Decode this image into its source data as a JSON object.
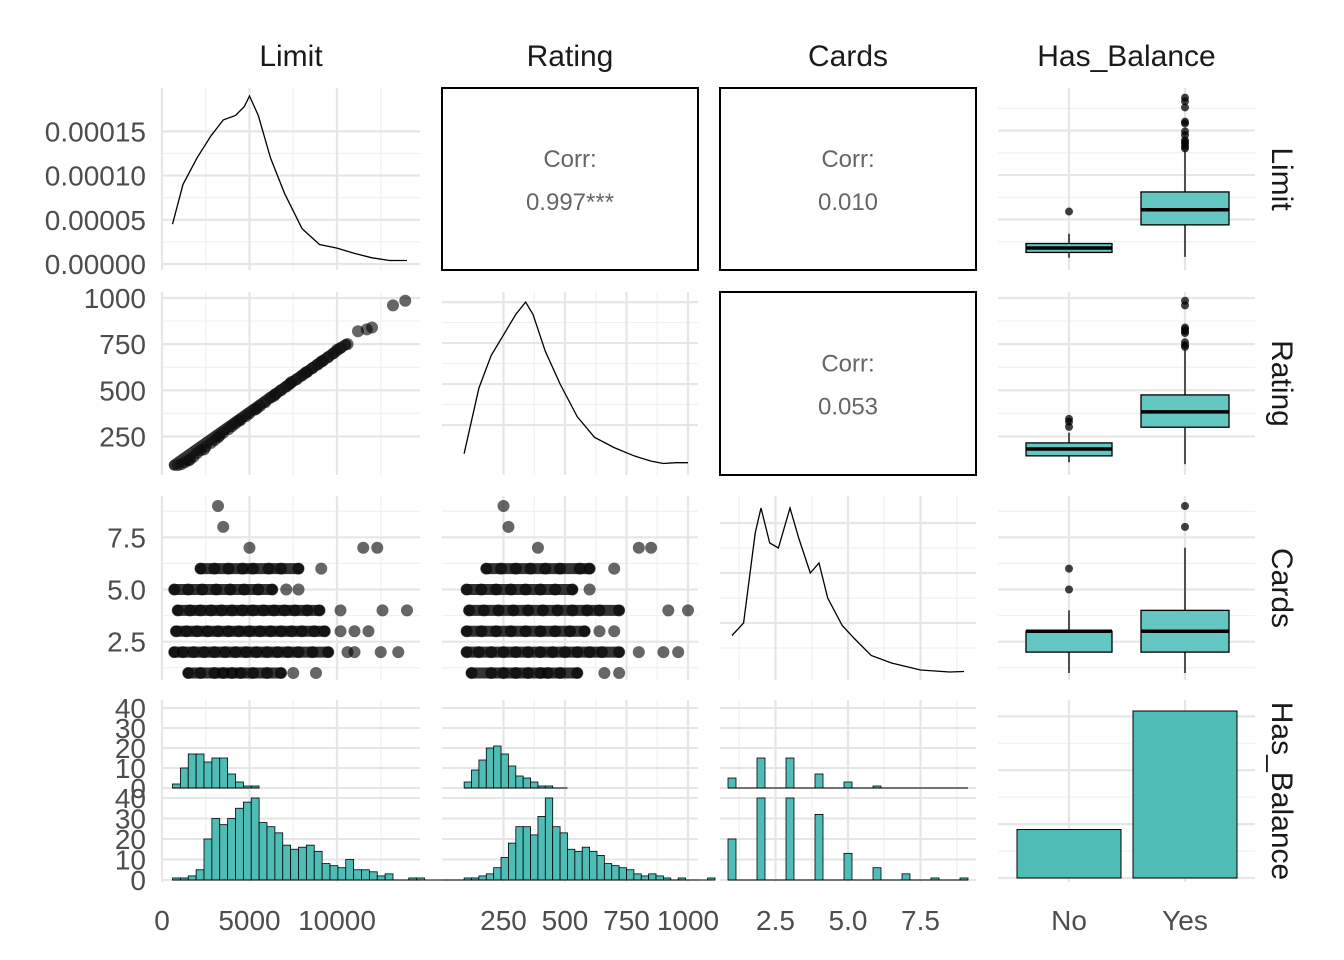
{
  "chart_data": {
    "type": "scatter-matrix",
    "variables": [
      "Limit",
      "Rating",
      "Cards",
      "Has_Balance"
    ],
    "column_strips": [
      "Limit",
      "Rating",
      "Cards",
      "Has_Balance"
    ],
    "row_strips": [
      "Limit",
      "Rating",
      "Cards",
      "Has_Balance"
    ],
    "correlations": [
      {
        "x": "Rating",
        "y": "Limit",
        "label": "Corr:",
        "value": "0.997***"
      },
      {
        "x": "Cards",
        "y": "Limit",
        "label": "Corr:",
        "value": "0.010"
      },
      {
        "x": "Cards",
        "y": "Rating",
        "label": "Corr:",
        "value": "0.053"
      }
    ],
    "axes": {
      "Limit": {
        "range": [
          600,
          14000
        ],
        "ticks": [
          "0",
          "5000",
          "10000"
        ]
      },
      "Rating": {
        "range": [
          90,
          1000
        ],
        "ticks": [
          "250",
          "500",
          "750",
          "1000"
        ]
      },
      "Cards": {
        "range": [
          1,
          9
        ],
        "ticks": [
          "2.5",
          "5.0",
          "7.5"
        ]
      },
      "Has_Balance": {
        "categories": [
          "No",
          "Yes"
        ]
      }
    },
    "density_y_ticks": [
      "0.00000",
      "0.00005",
      "0.00010",
      "0.00015"
    ],
    "rating_y_ticks": [
      "250",
      "500",
      "750",
      "1000"
    ],
    "cards_y_ticks": [
      "2.5",
      "5.0",
      "7.5"
    ],
    "count_ticks": [
      "0",
      "10",
      "20",
      "30",
      "40"
    ],
    "densities": {
      "Limit": [
        [
          600,
          4.5e-05
        ],
        [
          1200,
          9e-05
        ],
        [
          2000,
          0.00012
        ],
        [
          2800,
          0.000145
        ],
        [
          3500,
          0.000163
        ],
        [
          4200,
          0.000168
        ],
        [
          4700,
          0.000178
        ],
        [
          5000,
          0.00019
        ],
        [
          5500,
          0.000168
        ],
        [
          6200,
          0.00012
        ],
        [
          7000,
          8e-05
        ],
        [
          8000,
          4e-05
        ],
        [
          9000,
          2.2e-05
        ],
        [
          10000,
          1.8e-05
        ],
        [
          11000,
          1.2e-05
        ],
        [
          12000,
          7e-06
        ],
        [
          13000,
          4e-06
        ],
        [
          14000,
          4e-06
        ]
      ],
      "Rating": [
        [
          90,
          0.0003
        ],
        [
          150,
          0.0019
        ],
        [
          200,
          0.0027
        ],
        [
          250,
          0.0032
        ],
        [
          300,
          0.0037
        ],
        [
          340,
          0.004
        ],
        [
          370,
          0.0037
        ],
        [
          420,
          0.0028
        ],
        [
          480,
          0.002
        ],
        [
          550,
          0.0012
        ],
        [
          620,
          0.0007
        ],
        [
          700,
          0.00045
        ],
        [
          780,
          0.00025
        ],
        [
          850,
          0.00012
        ],
        [
          900,
          6e-05
        ],
        [
          950,
          8e-05
        ],
        [
          1000,
          8e-05
        ]
      ],
      "Cards": [
        [
          1,
          0.075
        ],
        [
          1.4,
          0.1
        ],
        [
          1.8,
          0.28
        ],
        [
          2.0,
          0.33
        ],
        [
          2.3,
          0.26
        ],
        [
          2.6,
          0.25
        ],
        [
          3.0,
          0.33
        ],
        [
          3.3,
          0.27
        ],
        [
          3.7,
          0.2
        ],
        [
          4.0,
          0.22
        ],
        [
          4.3,
          0.15
        ],
        [
          4.8,
          0.095
        ],
        [
          5.2,
          0.07
        ],
        [
          5.8,
          0.035
        ],
        [
          6.5,
          0.02
        ],
        [
          7.5,
          0.006
        ],
        [
          8.5,
          0.002
        ],
        [
          9,
          0.003
        ]
      ]
    },
    "boxplots": {
      "Limit": {
        "No": {
          "min": 700,
          "q1": 1300,
          "median": 1800,
          "q3": 2300,
          "max": 3400,
          "outliers": [
            5900
          ]
        },
        "Yes": {
          "min": 800,
          "q1": 4400,
          "median": 6100,
          "q3": 8100,
          "max": 12700,
          "outliers": [
            13000,
            13200,
            13500,
            13700,
            13900,
            14500,
            14900,
            15800,
            16000,
            17600,
            18300,
            18700
          ]
        }
      },
      "Rating": {
        "No": {
          "min": 110,
          "q1": 145,
          "median": 182,
          "q3": 215,
          "max": 270,
          "outliers": [
            302,
            330,
            345
          ]
        },
        "Yes": {
          "min": 100,
          "q1": 300,
          "median": 383,
          "q3": 475,
          "max": 720,
          "outliers": [
            735,
            745,
            760,
            810,
            820,
            830,
            840,
            960,
            985
          ]
        }
      },
      "Cards": {
        "No": {
          "min": 1,
          "q1": 2,
          "median": 3,
          "q3": 3,
          "max": 4,
          "outliers": [
            5,
            6
          ]
        },
        "Yes": {
          "min": 1,
          "q1": 2,
          "median": 3,
          "q3": 4,
          "max": 7,
          "outliers": [
            8,
            9
          ]
        }
      }
    },
    "bars": {
      "categories": [
        "No",
        "Yes"
      ],
      "values": [
        90,
        310
      ]
    },
    "histograms": {
      "Limit": {
        "start": 600,
        "bin_width": 450,
        "No": [
          2,
          10,
          17,
          17,
          13,
          15,
          15,
          7,
          3,
          1,
          1
        ],
        "Yes": [
          1,
          1,
          2,
          5,
          20,
          30,
          27,
          30,
          35,
          38,
          40,
          28,
          26,
          23,
          17,
          15,
          16,
          17,
          14,
          8,
          7,
          6,
          10,
          5,
          5,
          4,
          2,
          3,
          0,
          0,
          1,
          1,
          0,
          0,
          0,
          0,
          0,
          0
        ]
      },
      "Rating": {
        "start": 90,
        "bin_width": 30,
        "No": [
          3,
          9,
          14,
          20,
          21,
          17,
          11,
          6,
          5,
          3,
          1,
          1,
          0,
          0
        ],
        "Yes": [
          1,
          1,
          2,
          3,
          6,
          11,
          18,
          26,
          26,
          22,
          31,
          40,
          26,
          23,
          15,
          14,
          16,
          14,
          12,
          8,
          7,
          6,
          5,
          3,
          2,
          3,
          2,
          1,
          0,
          1,
          0,
          0,
          0,
          1
        ]
      },
      "Cards": {
        "categories": [
          1,
          2,
          3,
          4,
          5,
          6,
          7,
          8,
          9
        ],
        "No": [
          5,
          15,
          15,
          7,
          3,
          1,
          0,
          0,
          0
        ],
        "Yes": [
          20,
          40,
          40,
          32,
          13,
          6,
          3,
          1,
          1
        ]
      }
    },
    "scatter": {
      "Limit_vs_Rating": [
        [
          900,
          95
        ],
        [
          1100,
          100
        ],
        [
          1300,
          110
        ],
        [
          1500,
          120
        ],
        [
          1800,
          140
        ],
        [
          2000,
          160
        ],
        [
          2200,
          175
        ],
        [
          2500,
          195
        ],
        [
          2800,
          215
        ],
        [
          3000,
          230
        ],
        [
          3200,
          245
        ],
        [
          3500,
          270
        ],
        [
          3800,
          290
        ],
        [
          4000,
          305
        ],
        [
          4200,
          320
        ],
        [
          4500,
          340
        ],
        [
          4800,
          360
        ],
        [
          5000,
          375
        ],
        [
          5300,
          395
        ],
        [
          5600,
          415
        ],
        [
          5900,
          435
        ],
        [
          6200,
          460
        ],
        [
          6500,
          480
        ],
        [
          6800,
          500
        ],
        [
          7100,
          520
        ],
        [
          7400,
          545
        ],
        [
          7700,
          560
        ],
        [
          8000,
          580
        ],
        [
          8300,
          600
        ],
        [
          8600,
          620
        ],
        [
          8900,
          640
        ],
        [
          9200,
          660
        ],
        [
          9500,
          680
        ],
        [
          9800,
          700
        ],
        [
          10200,
          730
        ],
        [
          10600,
          750
        ],
        [
          11200,
          820
        ],
        [
          11700,
          830
        ],
        [
          12000,
          840
        ],
        [
          13200,
          960
        ],
        [
          13900,
          985
        ],
        [
          1600,
          125
        ],
        [
          2400,
          180
        ],
        [
          3300,
          255
        ],
        [
          4400,
          335
        ],
        [
          5400,
          400
        ],
        [
          6400,
          470
        ],
        [
          7300,
          535
        ],
        [
          8200,
          595
        ],
        [
          9100,
          655
        ],
        [
          10000,
          720
        ]
      ],
      "Cards_vs_Limit": {
        "1": [
          1500,
          2200,
          3000,
          3500,
          4000,
          4500,
          5200,
          6000,
          6800,
          7500,
          8800
        ],
        "2": [
          700,
          1200,
          1800,
          2400,
          3000,
          3600,
          4200,
          4800,
          5400,
          6000,
          6600,
          7200,
          7800,
          8600,
          9500,
          10600,
          11000,
          12500,
          13500
        ],
        "3": [
          800,
          1400,
          2000,
          2600,
          3200,
          3800,
          4400,
          5000,
          5600,
          6200,
          6800,
          7400,
          8000,
          8700,
          9300,
          10200,
          11000,
          11800
        ],
        "4": [
          900,
          1600,
          2200,
          2800,
          3400,
          4000,
          4600,
          5200,
          5800,
          6400,
          7000,
          7600,
          8300,
          9000,
          10200,
          12600,
          14000
        ],
        "5": [
          700,
          1500,
          2300,
          3100,
          3900,
          4700,
          5500,
          6300,
          7100,
          7800
        ],
        "6": [
          2200,
          3000,
          3800,
          4600,
          5200,
          6100,
          6800,
          7800,
          9100
        ],
        "7": [
          5000,
          11500,
          12300
        ],
        "8": [
          3500
        ],
        "9": [
          3200
        ]
      },
      "Cards_vs_Rating": {
        "1": [
          120,
          200,
          250,
          300,
          350,
          400,
          430,
          480,
          550,
          660,
          720
        ],
        "2": [
          100,
          150,
          200,
          250,
          300,
          350,
          400,
          450,
          500,
          550,
          600,
          650,
          720,
          800,
          900,
          960
        ],
        "3": [
          100,
          160,
          220,
          280,
          340,
          400,
          460,
          520,
          580,
          640,
          700
        ],
        "4": [
          110,
          170,
          230,
          290,
          350,
          410,
          470,
          530,
          590,
          640,
          720,
          920,
          1000
        ],
        "5": [
          100,
          160,
          220,
          280,
          340,
          400,
          460,
          530,
          600
        ],
        "6": [
          180,
          240,
          300,
          360,
          420,
          480,
          560,
          600,
          700
        ],
        "7": [
          390,
          800,
          850
        ],
        "8": [
          270
        ],
        "9": [
          250
        ]
      }
    }
  }
}
